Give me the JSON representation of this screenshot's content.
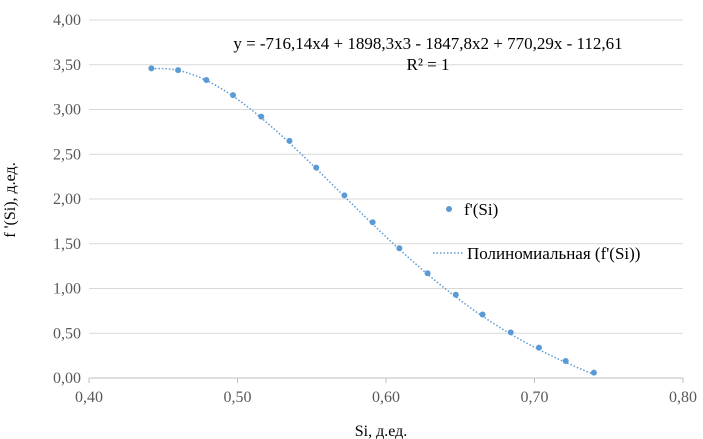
{
  "chart_data": {
    "type": "scatter",
    "xlabel": "Si, д.ед.",
    "ylabel": "f '(Si), д.ед.",
    "xlim": [
      0.4,
      0.8
    ],
    "ylim": [
      0.0,
      4.0
    ],
    "x_ticks": [
      "0,40",
      "0,50",
      "0,60",
      "0,70",
      "0,80"
    ],
    "y_ticks": [
      "0,00",
      "0,50",
      "1,00",
      "1,50",
      "2,00",
      "2,50",
      "3,00",
      "3,50",
      "4,00"
    ],
    "grid": "horizontal",
    "legend_position": "right",
    "series": [
      {
        "name": "f'(Si)",
        "kind": "markers",
        "color": "#5B9BD5",
        "x": [
          0.442,
          0.46,
          0.479,
          0.497,
          0.516,
          0.535,
          0.553,
          0.572,
          0.591,
          0.609,
          0.628,
          0.647,
          0.665,
          0.684,
          0.703,
          0.721,
          0.74
        ],
        "y": [
          3.46,
          3.44,
          3.33,
          3.16,
          2.92,
          2.65,
          2.35,
          2.04,
          1.74,
          1.45,
          1.17,
          0.93,
          0.71,
          0.51,
          0.34,
          0.19,
          0.06
        ]
      },
      {
        "name": "Полиномиальная (f'(Si))",
        "kind": "trendline",
        "style": "dotted",
        "color": "#5B9BD5",
        "coefficients": [
          -112.61,
          770.29,
          -1847.8,
          1898.3,
          -716.14
        ]
      }
    ],
    "annotations": {
      "equation": "y = -716,14x4 + 1898,3x3 - 1847,8x2 + 770,29x - 112,61",
      "r_squared": "R² = 1"
    }
  }
}
